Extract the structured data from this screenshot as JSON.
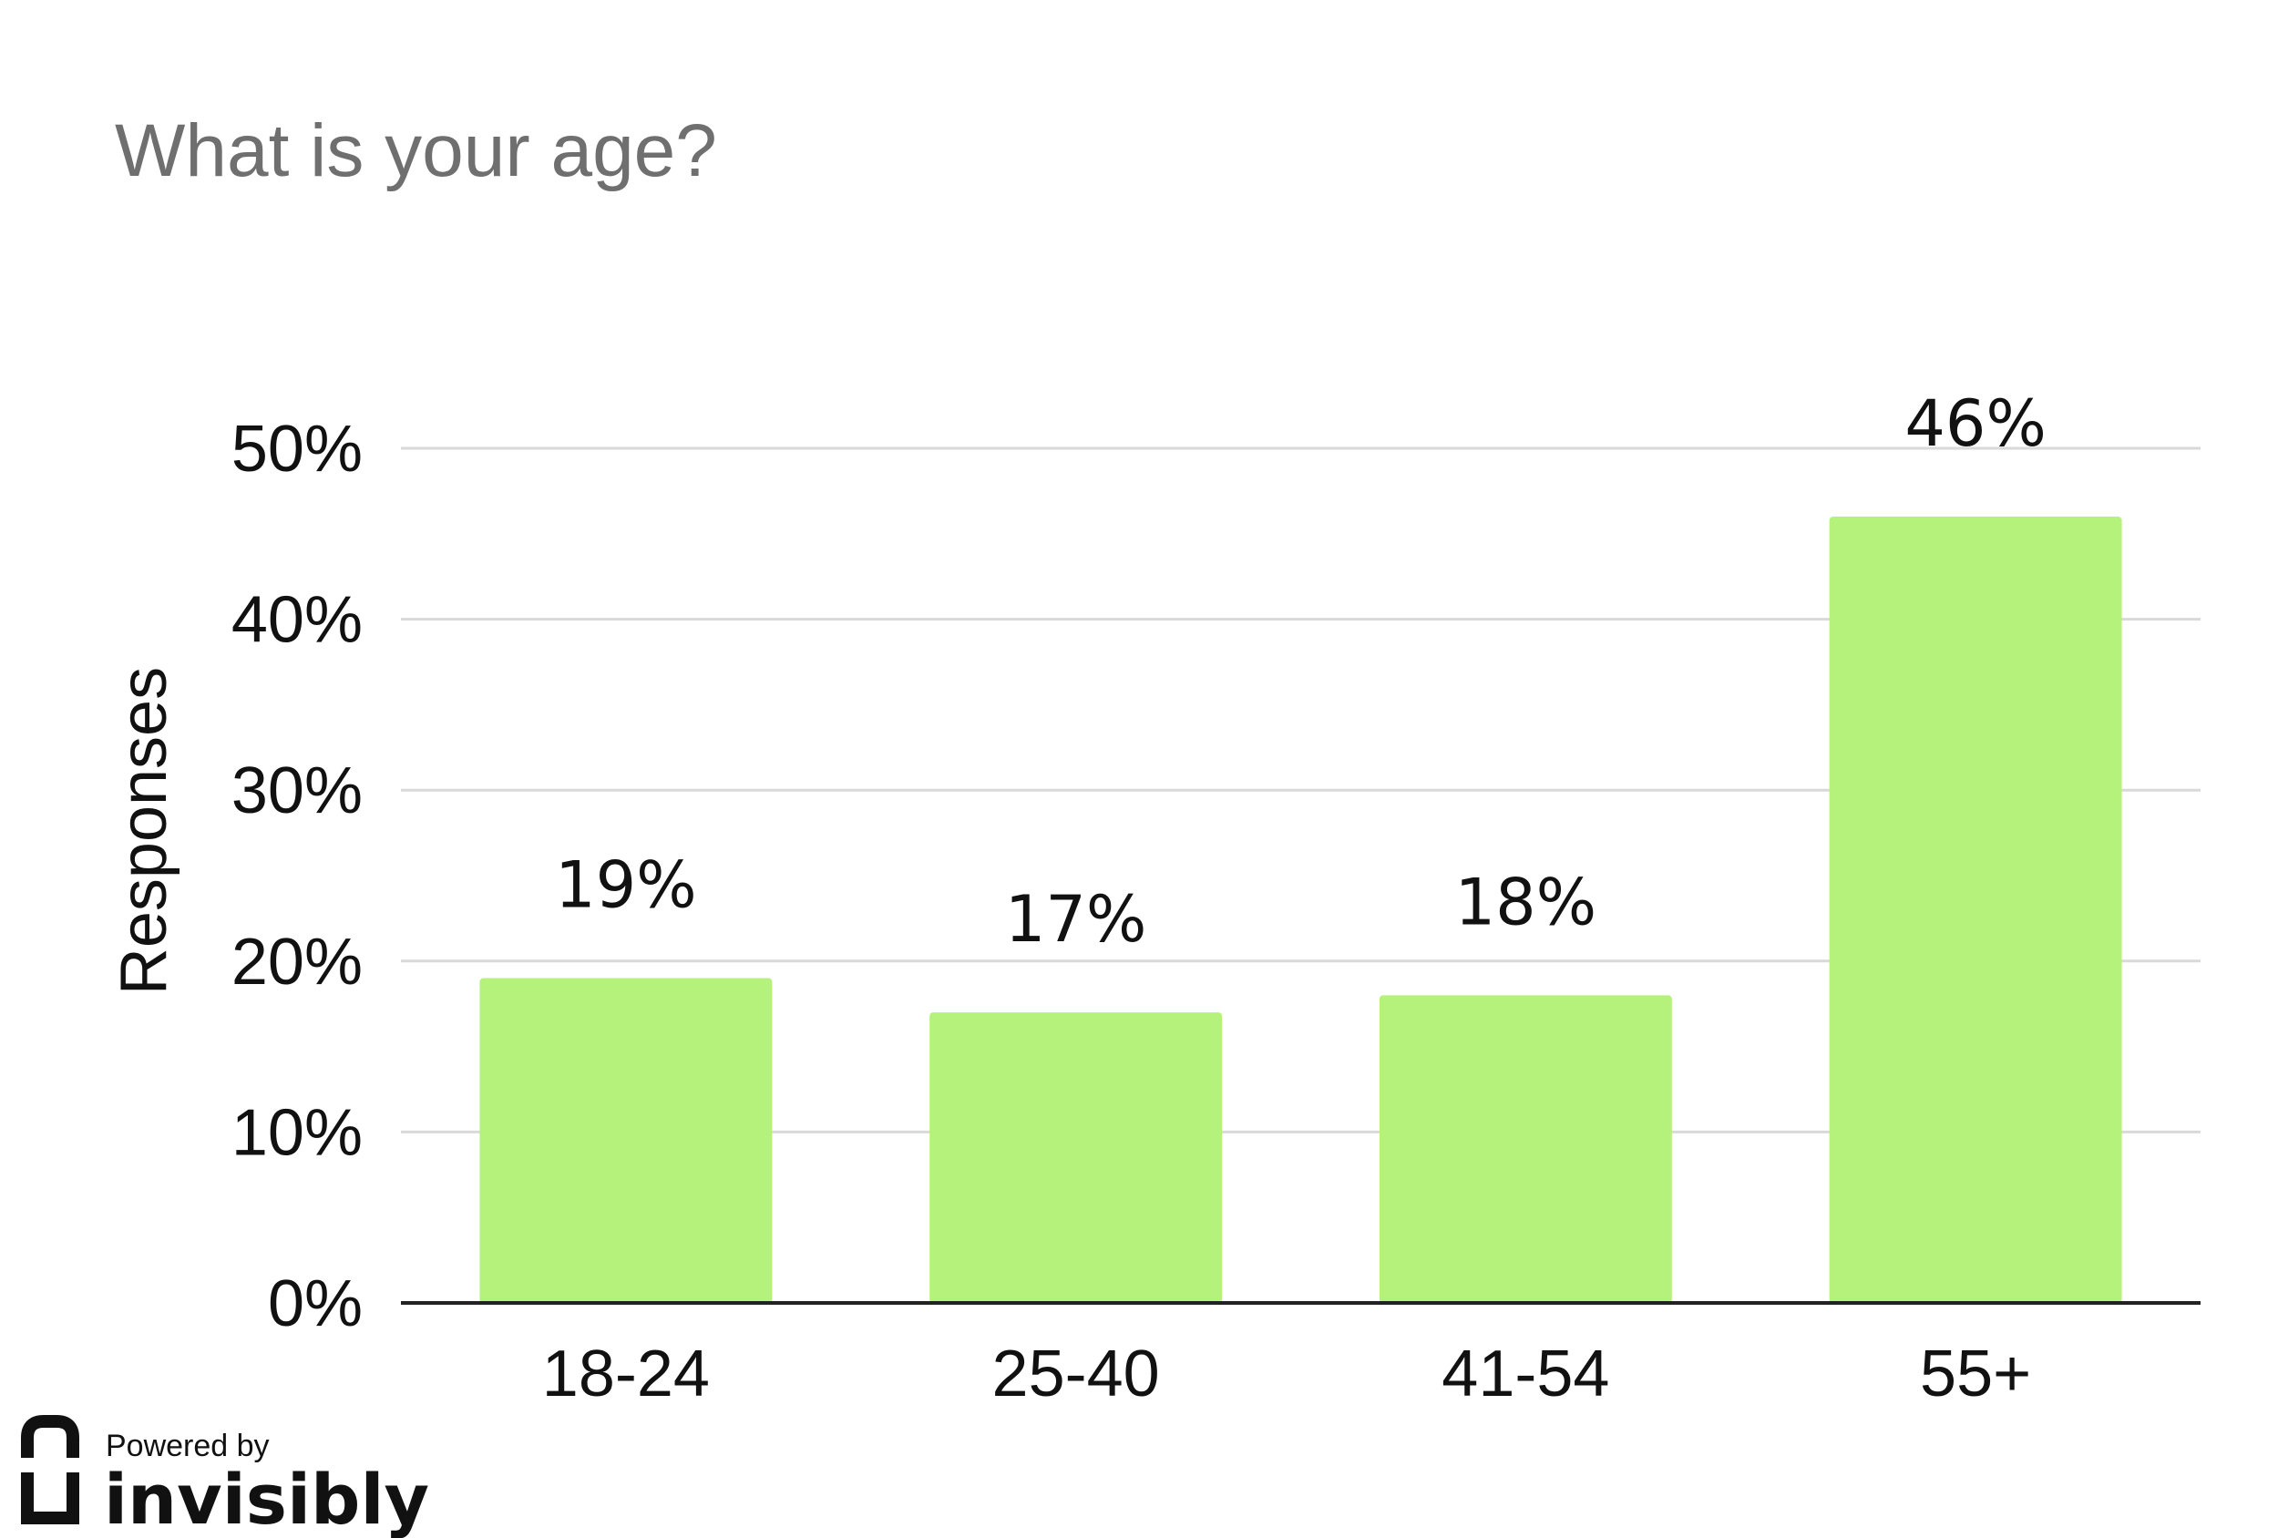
{
  "chart_data": {
    "type": "bar",
    "title": "What is your age?",
    "xlabel": "",
    "ylabel": "Responses",
    "categories": [
      "18-24",
      "25-40",
      "41-54",
      "55+"
    ],
    "values": [
      19,
      17,
      18,
      46
    ],
    "data_labels": [
      "19%",
      "17%",
      "18%",
      "46%"
    ],
    "ylim": [
      0,
      50
    ],
    "yticks": [
      0,
      10,
      20,
      30,
      40,
      50
    ],
    "ytick_labels": [
      "0%",
      "10%",
      "20%",
      "30%",
      "40%",
      "50%"
    ],
    "grid": true,
    "legend": "none",
    "bar_color": "#b5f27c",
    "grid_color": "#d9d9d9",
    "axis_color": "#222222"
  },
  "footer": {
    "powered_by": "Powered by",
    "brand": "invisibly",
    "logo_icon": "invisibly-logo-icon"
  }
}
